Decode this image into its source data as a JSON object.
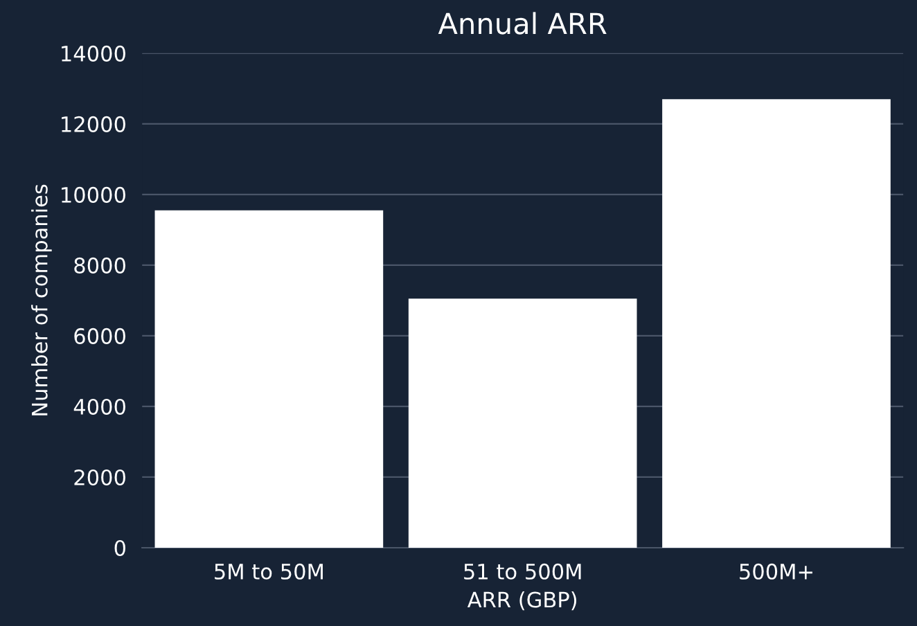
{
  "chart_data": {
    "type": "bar",
    "title": "Annual ARR",
    "xlabel": "ARR (GBP)",
    "ylabel": "Number of companies",
    "categories": [
      "5M to 50M",
      "51 to 500M",
      "500M+"
    ],
    "values": [
      9550,
      7050,
      12700
    ],
    "color": "#ffffff",
    "ylim": [
      0,
      14000
    ],
    "yticks": [
      0,
      2000,
      4000,
      6000,
      8000,
      10000,
      12000,
      14000
    ],
    "grid": "y"
  }
}
